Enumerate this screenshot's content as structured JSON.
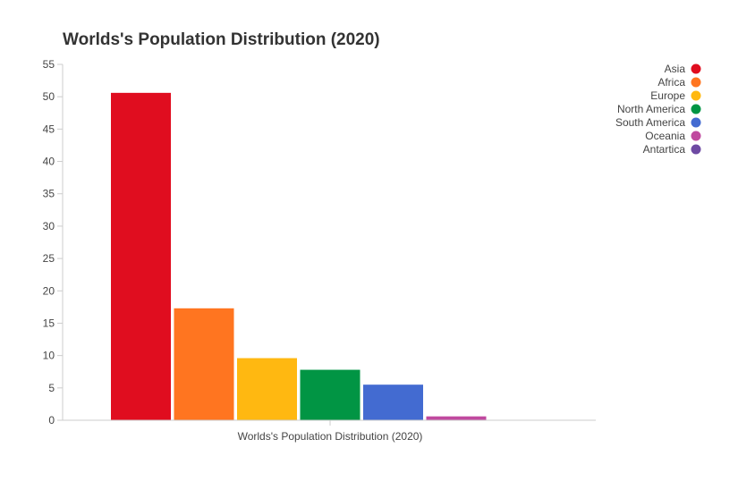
{
  "chart_data": {
    "type": "bar",
    "title": "Worlds's Population Distribution (2020)",
    "xlabel": "Worlds's Population Distribution (2020)",
    "ylabel": "",
    "categories": [
      "Worlds's Population Distribution (2020)"
    ],
    "ylim": [
      0,
      55
    ],
    "yticks": [
      0,
      5,
      10,
      15,
      20,
      25,
      30,
      35,
      40,
      45,
      50,
      55
    ],
    "grid": false,
    "legend_position": "top-right",
    "series": [
      {
        "name": "Asia",
        "values": [
          50.6
        ],
        "color": "#e00d1f"
      },
      {
        "name": "Africa",
        "values": [
          17.3
        ],
        "color": "#ff7520"
      },
      {
        "name": "Europe",
        "values": [
          9.6
        ],
        "color": "#ffb811"
      },
      {
        "name": "North America",
        "values": [
          7.8
        ],
        "color": "#019544"
      },
      {
        "name": "South America",
        "values": [
          5.5
        ],
        "color": "#436bd1"
      },
      {
        "name": "Oceania",
        "values": [
          0.6
        ],
        "color": "#c0499f"
      },
      {
        "name": "Antartica",
        "values": [
          0
        ],
        "color": "#6e4aa3"
      }
    ]
  }
}
